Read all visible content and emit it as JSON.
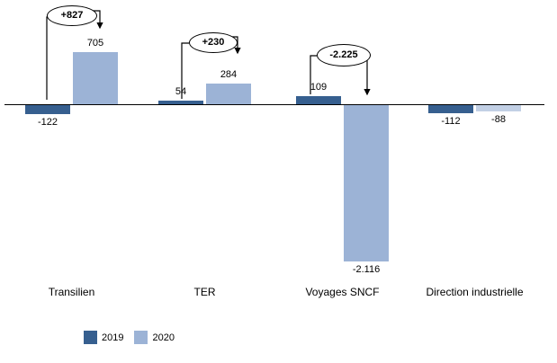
{
  "chart_data": {
    "type": "bar",
    "title": "",
    "xlabel": "",
    "ylabel": "",
    "grid": false,
    "ylim": [
      -2300,
      900
    ],
    "categories": [
      "Transilien",
      "TER",
      "Voyages SNCF",
      "Direction industrielle"
    ],
    "series": [
      {
        "name": "2019",
        "color": "#365F8F",
        "values": [
          -122,
          54,
          109,
          -112
        ],
        "labels": [
          "-122",
          "54",
          "109",
          "-112"
        ]
      },
      {
        "name": "2020",
        "color": "#9CB3D6",
        "bar_colors": [
          "#9CB3D6",
          "#9CB3D6",
          "#9CB3D6",
          "#C2D0E5"
        ],
        "values": [
          705,
          284,
          -2116,
          -88
        ],
        "labels": [
          "705",
          "284",
          "-2.116",
          "-88"
        ]
      }
    ],
    "annotations": [
      {
        "label": "+827",
        "value": 827,
        "category": "Transilien"
      },
      {
        "label": "+230",
        "value": 230,
        "category": "TER"
      },
      {
        "label": "-2.225",
        "value": -2225,
        "category": "Voyages SNCF"
      }
    ],
    "legend": {
      "position": "bottom-left",
      "items": [
        {
          "label": "2019",
          "color": "#365F8F"
        },
        {
          "label": "2020",
          "color": "#9CB3D6"
        }
      ]
    }
  }
}
